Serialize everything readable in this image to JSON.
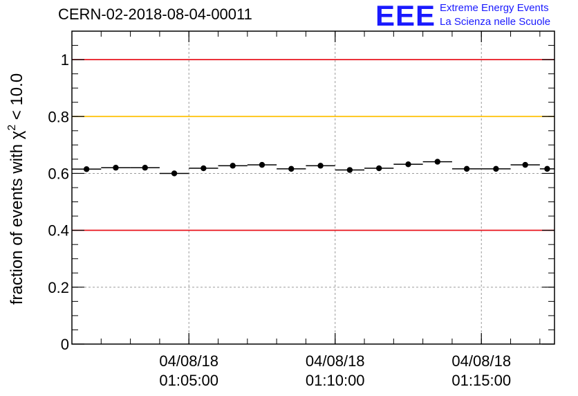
{
  "header": {
    "title": "CERN-02-2018-08-04-00011",
    "logo_text": "EEE",
    "logo_line1": "Extreme Energy Events",
    "logo_line2": "La Scienza nelle Scuole"
  },
  "colors": {
    "red_line": "#e8141e",
    "yellow_line": "#ffc000",
    "logo_blue": "#1a1aff"
  },
  "chart_data": {
    "type": "scatter",
    "title": "CERN-02-2018-08-04-00011",
    "ylabel": "fraction of events with χ² < 10.0",
    "ylabel_base": "fraction of events with ",
    "ylabel_chi": "χ",
    "ylabel_sup": "2",
    "ylabel_tail": " < 10.0",
    "xlabel": "",
    "ylim": [
      0,
      1.1
    ],
    "yticks": [
      {
        "v": 0,
        "label": "0"
      },
      {
        "v": 0.2,
        "label": "0.2"
      },
      {
        "v": 0.4,
        "label": "0.4"
      },
      {
        "v": 0.6,
        "label": "0.6"
      },
      {
        "v": 0.8,
        "label": "0.8"
      },
      {
        "v": 1,
        "label": "1"
      }
    ],
    "xlim": [
      "01:01:00",
      "01:17:30"
    ],
    "xticks": [
      {
        "t": "01:05:00",
        "date": "04/08/18",
        "time": "01:05:00"
      },
      {
        "t": "01:10:00",
        "date": "04/08/18",
        "time": "01:10:00"
      },
      {
        "t": "01:15:00",
        "date": "04/08/18",
        "time": "01:15:00"
      }
    ],
    "grid": true,
    "reference_lines": [
      {
        "y": 1.0,
        "color": "red"
      },
      {
        "y": 0.8,
        "color": "yellow"
      },
      {
        "y": 0.4,
        "color": "red"
      }
    ],
    "bin_edges": [
      "01:01:00",
      "01:02:00",
      "01:03:00",
      "01:04:00",
      "01:05:00",
      "01:06:00",
      "01:07:00",
      "01:08:00",
      "01:09:00",
      "01:10:00",
      "01:11:00",
      "01:12:00",
      "01:13:00",
      "01:14:00",
      "01:15:00",
      "01:16:00",
      "01:17:00",
      "01:17:30"
    ],
    "values": [
      0.615,
      0.62,
      0.62,
      0.6,
      0.618,
      0.627,
      0.63,
      0.616,
      0.627,
      0.612,
      0.618,
      0.632,
      0.641,
      0.616,
      0.616,
      0.63,
      0.616
    ]
  }
}
